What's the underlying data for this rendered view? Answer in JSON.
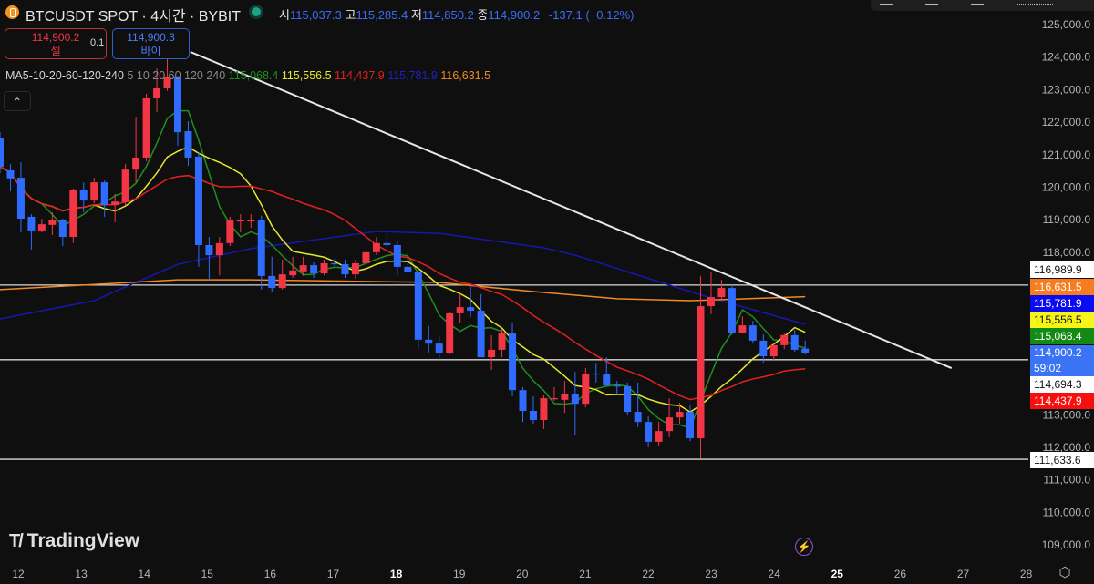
{
  "header": {
    "symbol": "BTCUSDT SPOT · 4시간 · BYBIT",
    "open_label": "시",
    "open": "115,037.3",
    "high_label": "고",
    "high": "115,285.4",
    "low_label": "저",
    "low": "114,850.2",
    "close_label": "종",
    "close": "114,900.2",
    "change": "-137.1 (−0.12%)"
  },
  "trade": {
    "sell_price": "114,900.2",
    "sell_label": "셀",
    "quantity": "0.1",
    "buy_price": "114,900.3",
    "buy_label": "바이"
  },
  "indicator": {
    "name": "MA5-10-20-60-120-240",
    "params": "5 10 20 60 120 240",
    "values": [
      "115,068.4",
      "115,556.5",
      "114,437.9",
      "115,781.9",
      "116,631.5"
    ],
    "colors": [
      "#1f8f1f",
      "#e8e82c",
      "#e3211f",
      "#1717b0",
      "#f08a24"
    ]
  },
  "collapse_icon": "chevron-up-icon",
  "logo": {
    "text": "TradingView"
  },
  "price_tags": [
    {
      "label": "116,989.9",
      "bg": "#ffffff",
      "fg": "#111111"
    },
    {
      "label": "116,631.5",
      "bg": "#f57c1f",
      "fg": "#ffffff"
    },
    {
      "label": "115,781.9",
      "bg": "#0b0bf0",
      "fg": "#ffffff"
    },
    {
      "label": "115,556.5",
      "bg": "#f5f51a",
      "fg": "#111111"
    },
    {
      "label": "115,068.4",
      "bg": "#138a13",
      "fg": "#ffffff"
    },
    {
      "label": "114,900.2",
      "sub": "59:02",
      "bg": "#3a74f5",
      "fg": "#ffffff"
    },
    {
      "label": "114,694.3",
      "bg": "#ffffff",
      "fg": "#111111"
    },
    {
      "label": "114,437.9",
      "bg": "#f50f0f",
      "fg": "#ffffff"
    },
    {
      "label": "111,633.6",
      "bg": "#ffffff",
      "fg": "#111111"
    }
  ],
  "chart_data": {
    "type": "candlestick",
    "up_color": "#f23645",
    "down_color": "#2f6bff",
    "y_ticks": [
      "125,000.0",
      "124,000.0",
      "123,000.0",
      "122,000.0",
      "121,000.0",
      "120,000.0",
      "119,000.0",
      "118,000.0",
      "113,000.0",
      "112,000.0",
      "111,000.0",
      "110,000.0",
      "109,000.0"
    ],
    "x_ticks": [
      {
        "label": "12"
      },
      {
        "label": "13"
      },
      {
        "label": "14"
      },
      {
        "label": "15"
      },
      {
        "label": "16"
      },
      {
        "label": "17"
      },
      {
        "label": "18",
        "bold": true
      },
      {
        "label": "19"
      },
      {
        "label": "20"
      },
      {
        "label": "21"
      },
      {
        "label": "22"
      },
      {
        "label": "23"
      },
      {
        "label": "24"
      },
      {
        "label": "25",
        "bold": true
      },
      {
        "label": "26"
      },
      {
        "label": "27"
      },
      {
        "label": "28"
      }
    ],
    "candles_ohlc": [
      [
        121500,
        121690,
        120430,
        120630
      ],
      [
        120520,
        120710,
        119870,
        120270
      ],
      [
        120290,
        120770,
        118610,
        119030
      ],
      [
        119090,
        119170,
        118080,
        118670
      ],
      [
        118670,
        119030,
        118610,
        118860
      ],
      [
        118840,
        119230,
        118530,
        118980
      ],
      [
        118980,
        119030,
        118190,
        118470
      ],
      [
        118470,
        119960,
        118280,
        119930
      ],
      [
        119930,
        120150,
        119230,
        119590
      ],
      [
        119590,
        120290,
        119510,
        120150
      ],
      [
        120150,
        120210,
        119090,
        119450
      ],
      [
        119450,
        119790,
        118920,
        119560
      ],
      [
        119540,
        120710,
        119450,
        120540
      ],
      [
        120540,
        122170,
        120150,
        120910
      ],
      [
        120910,
        122870,
        120800,
        122730
      ],
      [
        122730,
        123650,
        122310,
        123040
      ],
      [
        123040,
        123940,
        122960,
        123380
      ],
      [
        123380,
        123430,
        121270,
        121690
      ],
      [
        121720,
        122030,
        120660,
        120910
      ],
      [
        120940,
        121080,
        117550,
        118220
      ],
      [
        118220,
        118470,
        117150,
        117910
      ],
      [
        117910,
        118470,
        117290,
        118280
      ],
      [
        118280,
        119090,
        118190,
        118980
      ],
      [
        118950,
        119170,
        118610,
        118980
      ],
      [
        118950,
        119170,
        118750,
        118980
      ],
      [
        118980,
        119120,
        116850,
        117270
      ],
      [
        117270,
        117860,
        116790,
        116900
      ],
      [
        116900,
        117770,
        116850,
        117320
      ],
      [
        117290,
        117860,
        117210,
        117440
      ],
      [
        117410,
        117860,
        117270,
        117600
      ],
      [
        117600,
        117690,
        117210,
        117350
      ],
      [
        117350,
        117770,
        117290,
        117660
      ],
      [
        117660,
        117800,
        117570,
        117650
      ],
      [
        117630,
        117770,
        117210,
        117320
      ],
      [
        117320,
        117770,
        117180,
        117660
      ],
      [
        117660,
        118220,
        117570,
        118000
      ],
      [
        118000,
        118470,
        117910,
        118280
      ],
      [
        118280,
        118580,
        118110,
        118220
      ],
      [
        118220,
        118330,
        117290,
        117550
      ],
      [
        117550,
        117990,
        117350,
        117380
      ],
      [
        117380,
        117490,
        115020,
        115310
      ],
      [
        115310,
        115730,
        114910,
        115190
      ],
      [
        115190,
        115420,
        114690,
        114910
      ],
      [
        114910,
        116170,
        114860,
        116120
      ],
      [
        116120,
        116730,
        115840,
        116310
      ],
      [
        116310,
        116990,
        116010,
        116200
      ],
      [
        116200,
        116710,
        114770,
        114770
      ],
      [
        114770,
        115450,
        114380,
        115000
      ],
      [
        115000,
        115640,
        114770,
        115500
      ],
      [
        115500,
        115840,
        113570,
        113760
      ],
      [
        113760,
        113850,
        112780,
        113120
      ],
      [
        113120,
        113570,
        112730,
        112840
      ],
      [
        112840,
        113600,
        112560,
        113510
      ],
      [
        113510,
        113850,
        113430,
        113510
      ],
      [
        113460,
        114040,
        113060,
        113650
      ],
      [
        113650,
        114320,
        112390,
        113340
      ],
      [
        113340,
        114440,
        113230,
        114270
      ],
      [
        114270,
        114600,
        113990,
        114240
      ],
      [
        114240,
        114770,
        113880,
        113900
      ],
      [
        113900,
        114040,
        113620,
        113880
      ],
      [
        113880,
        113990,
        112980,
        113090
      ],
      [
        113090,
        113990,
        112620,
        112780
      ],
      [
        112780,
        112950,
        112000,
        112170
      ],
      [
        112170,
        112780,
        112050,
        112500
      ],
      [
        112500,
        113510,
        112310,
        112920
      ],
      [
        112920,
        113370,
        112730,
        113090
      ],
      [
        113090,
        113290,
        112190,
        112280
      ],
      [
        112280,
        117270,
        111660,
        116340
      ],
      [
        116340,
        117410,
        116090,
        116620
      ],
      [
        116620,
        117150,
        116540,
        116900
      ],
      [
        116900,
        116990,
        115470,
        115530
      ],
      [
        115530,
        116030,
        115500,
        115750
      ],
      [
        115750,
        115890,
        115190,
        115280
      ],
      [
        115280,
        115470,
        114600,
        114800
      ],
      [
        114800,
        115190,
        114690,
        115140
      ],
      [
        115140,
        115500,
        115020,
        115450
      ],
      [
        115450,
        115610,
        114940,
        115000
      ],
      [
        115037.3,
        115285.4,
        114850.2,
        114900.2
      ]
    ],
    "ma_computed": [
      {
        "period": 5,
        "color": "#1f8f1f"
      },
      {
        "period": 10,
        "color": "#e8e82c"
      },
      {
        "period": 20,
        "color": "#e3211f"
      }
    ],
    "ma_long": [
      {
        "period": 60,
        "color": "#1717b0",
        "points": [
          [
            0,
            115950
          ],
          [
            9,
            116510
          ],
          [
            17,
            117630
          ],
          [
            24,
            118110
          ],
          [
            36,
            118640
          ],
          [
            42,
            118580
          ],
          [
            52,
            118135
          ],
          [
            55,
            117910
          ],
          [
            64,
            116990
          ],
          [
            68,
            116594
          ],
          [
            77,
            115781.9
          ]
        ]
      },
      {
        "period": 120,
        "color": "#f08a24",
        "points": [
          [
            0,
            116850
          ],
          [
            17,
            117150
          ],
          [
            24,
            117150
          ],
          [
            42,
            117070
          ],
          [
            51,
            116790
          ],
          [
            59,
            116570
          ],
          [
            66,
            116510
          ],
          [
            77,
            116631.5
          ]
        ]
      }
    ],
    "horizontal_lines": [
      116989.9,
      114694.3,
      111633.6
    ],
    "last_price_line": 114900.2,
    "trend_line": [
      [
        18.2,
        124160
      ],
      [
        91,
        114436
      ]
    ]
  }
}
